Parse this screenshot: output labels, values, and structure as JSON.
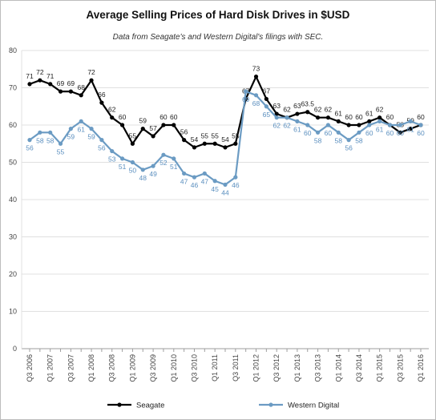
{
  "chart_data": {
    "type": "line",
    "title": "Average Selling Prices of Hard Disk Drives in $USD",
    "subtitle": "Data from Seagate's and Western Digital's filings with SEC.",
    "xlabel": "",
    "ylabel": "",
    "ylim": [
      0,
      80
    ],
    "yticks": [
      "0",
      "10",
      "20",
      "30",
      "40",
      "50",
      "60",
      "70",
      "80"
    ],
    "grid": true,
    "legend_position": "bottom",
    "x": [
      "Q3 2006",
      "Q4 2006",
      "Q1 2007",
      "Q2 2007",
      "Q3 2007",
      "Q4 2007",
      "Q1 2008",
      "Q2 2008",
      "Q3 2008",
      "Q4 2008",
      "Q1 2009",
      "Q2 2009",
      "Q3 2009",
      "Q4 2009",
      "Q1 2010",
      "Q2 2010",
      "Q3 2010",
      "Q4 2010",
      "Q1 2011",
      "Q2 2011",
      "Q3 2011",
      "Q4 2011",
      "Q1 2012",
      "Q2 2012",
      "Q3 2012",
      "Q4 2012",
      "Q1 2013",
      "Q2 2013",
      "Q3 2013",
      "Q4 2013",
      "Q1 2014",
      "Q2 2014",
      "Q3 2014",
      "Q4 2014",
      "Q1 2015",
      "Q2 2015",
      "Q3 2015",
      "Q4 2015",
      "Q1 2016"
    ],
    "x_tick_labels": [
      "Q3 2006",
      "Q1 2007",
      "Q3 2007",
      "Q1 2008",
      "Q3 2008",
      "Q1 2009",
      "Q3 2009",
      "Q1 2010",
      "Q3 2010",
      "Q1 2011",
      "Q3 2011",
      "Q1 2012",
      "Q3 2012",
      "Q1 2013",
      "Q3 2013",
      "Q1 2014",
      "Q3 2014",
      "Q1 2015",
      "Q3 2015",
      "Q1 2016"
    ],
    "series": [
      {
        "name": "Seagate",
        "color": "#000000",
        "values": [
          71,
          72,
          71,
          69,
          69,
          68,
          72,
          66,
          62,
          60,
          55,
          59,
          57,
          60,
          60,
          56,
          54,
          55,
          55,
          54,
          55,
          67,
          73,
          67,
          63,
          62,
          63,
          63.5,
          62,
          62,
          61,
          60,
          60,
          61,
          62,
          60,
          58,
          59,
          60
        ],
        "labels": [
          "71",
          "72",
          "71",
          "69",
          "69",
          "68",
          "72",
          "66",
          "62",
          "60",
          "55",
          "59",
          "57",
          "60",
          "60",
          "56",
          "54",
          "55",
          "55",
          "54",
          "55",
          "67",
          "73",
          "67",
          "63",
          "62",
          "63",
          "63.5",
          "62",
          "62",
          "61",
          "60",
          "60",
          "61",
          "62",
          "60",
          "58",
          "59",
          "60"
        ]
      },
      {
        "name": "Western Digital",
        "color": "#6b9bc3",
        "values": [
          56,
          58,
          58,
          55,
          59,
          61,
          59,
          56,
          53,
          51,
          50,
          48,
          49,
          52,
          51,
          47,
          46,
          47,
          45,
          44,
          46,
          69,
          68,
          65,
          62,
          62,
          61,
          60,
          58,
          60,
          58,
          56,
          58,
          60,
          61,
          60,
          60,
          61,
          60
        ],
        "labels": [
          "56",
          "58",
          "58",
          "55",
          "59",
          "61",
          "59",
          "56",
          "53",
          "51",
          "50",
          "48",
          "49",
          "52",
          "51",
          "47",
          "46",
          "47",
          "45",
          "44",
          "46",
          "69",
          "68",
          "65",
          "62",
          "62",
          "61",
          "60",
          "58",
          "60",
          "58",
          "56",
          "58",
          "60",
          "61",
          "60",
          "60",
          "61",
          "60"
        ]
      }
    ]
  }
}
